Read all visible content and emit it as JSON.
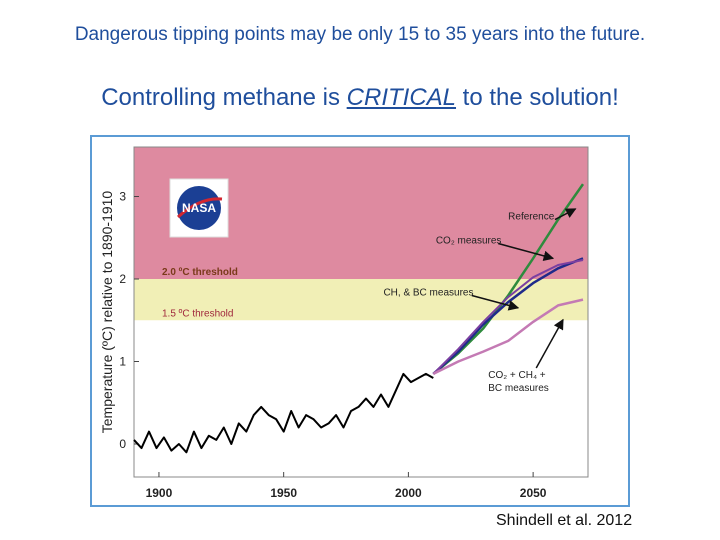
{
  "headline_1": "Dangerous tipping points may be only 15 to 35 years into the future.",
  "headline_2": {
    "before": "Controlling methane is ",
    "emph": "CRITICAL",
    "after": " to the solution!"
  },
  "citation": "Shindell et al. 2012",
  "logo_text": "NASA",
  "colors": {
    "danger_zone": "#de8aa0",
    "caution_zone": "#f1efb6",
    "observed": "#000000",
    "reference": "#2e8b3d",
    "co2": "#1f2a8a",
    "ch4_bc": "#7b3fa0",
    "combined": "#c47ab4",
    "frame": "#5b9bd5"
  },
  "chart_data": {
    "type": "line",
    "ylabel": "Temperature (ºC) relative to 1890-1910",
    "xlim": [
      1890,
      2072
    ],
    "ylim": [
      -0.4,
      3.6
    ],
    "x_ticks": [
      1900,
      1950,
      2000,
      2050
    ],
    "y_ticks": [
      0,
      1,
      2,
      3
    ],
    "bands": [
      {
        "y0": 2.0,
        "y1": 3.6,
        "color": "#de8aa0"
      },
      {
        "y0": 1.5,
        "y1": 2.0,
        "color": "#f1efb6"
      }
    ],
    "threshold_labels": [
      {
        "text": "2.0 ºC threshold",
        "y": 2.0
      },
      {
        "text": "1.5 ºC threshold",
        "y": 1.5
      }
    ],
    "series": [
      {
        "key": "observed",
        "x": [
          1890,
          1893,
          1896,
          1899,
          1902,
          1905,
          1908,
          1911,
          1914,
          1917,
          1920,
          1923,
          1926,
          1929,
          1932,
          1935,
          1938,
          1941,
          1944,
          1947,
          1950,
          1953,
          1956,
          1959,
          1962,
          1965,
          1968,
          1971,
          1974,
          1977,
          1980,
          1983,
          1986,
          1989,
          1992,
          1995,
          1998,
          2001,
          2004,
          2007,
          2010
        ],
        "y": [
          0.05,
          -0.05,
          0.15,
          -0.05,
          0.08,
          -0.08,
          0.0,
          -0.1,
          0.15,
          -0.05,
          0.1,
          0.05,
          0.2,
          0.0,
          0.25,
          0.15,
          0.35,
          0.45,
          0.35,
          0.3,
          0.15,
          0.4,
          0.2,
          0.35,
          0.3,
          0.2,
          0.25,
          0.35,
          0.2,
          0.4,
          0.45,
          0.55,
          0.45,
          0.6,
          0.45,
          0.65,
          0.85,
          0.75,
          0.8,
          0.85,
          0.8
        ]
      },
      {
        "key": "reference",
        "x": [
          2010,
          2020,
          2030,
          2040,
          2050,
          2060,
          2070
        ],
        "y": [
          0.85,
          1.1,
          1.4,
          1.8,
          2.25,
          2.72,
          3.15
        ]
      },
      {
        "key": "co2",
        "x": [
          2010,
          2020,
          2030,
          2040,
          2050,
          2060,
          2070
        ],
        "y": [
          0.85,
          1.12,
          1.45,
          1.72,
          1.95,
          2.13,
          2.25
        ]
      },
      {
        "key": "ch4_bc",
        "x": [
          2010,
          2020,
          2030,
          2040,
          2050,
          2060,
          2070
        ],
        "y": [
          0.85,
          1.15,
          1.48,
          1.78,
          2.02,
          2.17,
          2.23
        ]
      },
      {
        "key": "combined",
        "x": [
          2010,
          2020,
          2030,
          2040,
          2050,
          2060,
          2070
        ],
        "y": [
          0.85,
          1.0,
          1.12,
          1.25,
          1.48,
          1.68,
          1.75
        ]
      }
    ],
    "annotations": [
      {
        "key": "ann_reference",
        "text": "Reference",
        "x": 2040,
        "y": 2.72,
        "ax": 2067,
        "ay": 2.85
      },
      {
        "key": "ann_co2",
        "text": "CO₂ measures",
        "x": 2011,
        "y": 2.43,
        "ax": 2058,
        "ay": 2.25
      },
      {
        "key": "ann_ch4",
        "text": "CH, & BC measures",
        "x": 1990,
        "y": 1.8,
        "ax": 2044,
        "ay": 1.65
      },
      {
        "key": "ann_combined",
        "text_lines": [
          "CO₂ + CH₄ +",
          "BC measures"
        ],
        "x": 2032,
        "y": 0.8,
        "ax": 2062,
        "ay": 1.58
      }
    ]
  }
}
